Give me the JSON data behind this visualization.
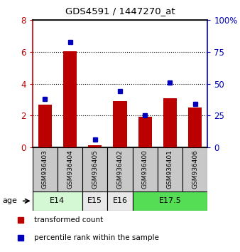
{
  "title": "GDS4591 / 1447270_at",
  "samples": [
    "GSM936403",
    "GSM936404",
    "GSM936405",
    "GSM936402",
    "GSM936400",
    "GSM936401",
    "GSM936406"
  ],
  "red_values": [
    2.68,
    6.05,
    0.15,
    2.92,
    1.92,
    3.08,
    2.5
  ],
  "blue_values": [
    38,
    83,
    6,
    44,
    25,
    51,
    34
  ],
  "ylim_left": [
    0,
    8
  ],
  "ylim_right": [
    0,
    100
  ],
  "yticks_left": [
    0,
    2,
    4,
    6,
    8
  ],
  "yticks_right": [
    0,
    25,
    50,
    75,
    100
  ],
  "age_groups": [
    {
      "label": "E14",
      "indices": [
        0,
        1
      ],
      "color": "#d4f7d4"
    },
    {
      "label": "E15",
      "indices": [
        2
      ],
      "color": "#e8e8e8"
    },
    {
      "label": "E16",
      "indices": [
        3
      ],
      "color": "#e8e8e8"
    },
    {
      "label": "E17.5",
      "indices": [
        4,
        5,
        6
      ],
      "color": "#55dd55"
    }
  ],
  "red_color": "#bb0000",
  "blue_color": "#0000bb",
  "grid_yticks": [
    2,
    4,
    6
  ],
  "sample_bg_color": "#c8c8c8",
  "legend": [
    {
      "label": "transformed count",
      "color": "#bb0000"
    },
    {
      "label": "percentile rank within the sample",
      "color": "#0000bb"
    }
  ]
}
